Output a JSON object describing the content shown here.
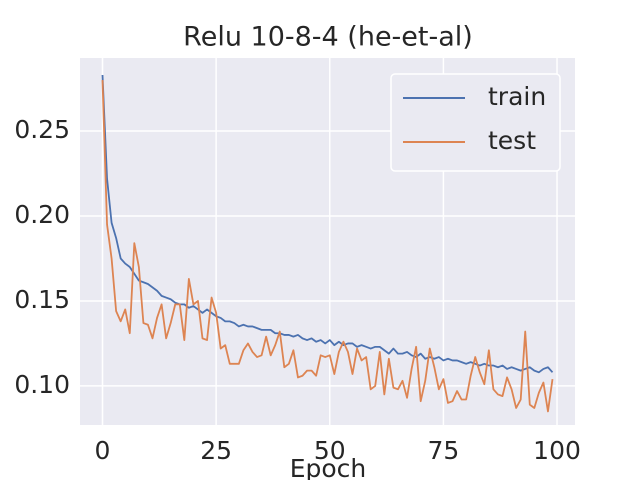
{
  "chart_data": {
    "type": "line",
    "title": "Relu 10-8-4 (he-et-al)",
    "x_label": "Epoch",
    "x": [
      0,
      1,
      2,
      3,
      4,
      5,
      6,
      7,
      8,
      9,
      10,
      11,
      12,
      13,
      14,
      15,
      16,
      17,
      18,
      19,
      20,
      21,
      22,
      23,
      24,
      25,
      26,
      27,
      28,
      29,
      30,
      31,
      32,
      33,
      34,
      35,
      36,
      37,
      38,
      39,
      40,
      41,
      42,
      43,
      44,
      45,
      46,
      47,
      48,
      49,
      50,
      51,
      52,
      53,
      54,
      55,
      56,
      57,
      58,
      59,
      60,
      61,
      62,
      63,
      64,
      65,
      66,
      67,
      68,
      69,
      70,
      71,
      72,
      73,
      74,
      75,
      76,
      77,
      78,
      79,
      80,
      81,
      82,
      83,
      84,
      85,
      86,
      87,
      88,
      89,
      90,
      91,
      92,
      93,
      94,
      95,
      96,
      97,
      98,
      99
    ],
    "series": [
      {
        "name": "train",
        "color": "#4c72b0",
        "values": [
          0.283,
          0.222,
          0.196,
          0.187,
          0.175,
          0.172,
          0.17,
          0.166,
          0.162,
          0.161,
          0.16,
          0.158,
          0.156,
          0.153,
          0.152,
          0.151,
          0.149,
          0.148,
          0.148,
          0.146,
          0.147,
          0.145,
          0.143,
          0.145,
          0.143,
          0.141,
          0.14,
          0.138,
          0.138,
          0.137,
          0.135,
          0.136,
          0.135,
          0.135,
          0.134,
          0.133,
          0.133,
          0.133,
          0.131,
          0.131,
          0.13,
          0.13,
          0.129,
          0.13,
          0.128,
          0.127,
          0.128,
          0.126,
          0.127,
          0.125,
          0.127,
          0.124,
          0.126,
          0.124,
          0.125,
          0.125,
          0.123,
          0.124,
          0.123,
          0.122,
          0.123,
          0.123,
          0.121,
          0.119,
          0.122,
          0.119,
          0.119,
          0.12,
          0.118,
          0.117,
          0.119,
          0.116,
          0.117,
          0.116,
          0.117,
          0.115,
          0.116,
          0.115,
          0.115,
          0.114,
          0.113,
          0.114,
          0.113,
          0.112,
          0.113,
          0.112,
          0.112,
          0.111,
          0.112,
          0.11,
          0.111,
          0.11,
          0.109,
          0.11,
          0.111,
          0.109,
          0.108,
          0.11,
          0.111,
          0.108
        ]
      },
      {
        "name": "test",
        "color": "#dd8452",
        "values": [
          0.28,
          0.195,
          0.175,
          0.144,
          0.138,
          0.145,
          0.131,
          0.184,
          0.17,
          0.137,
          0.136,
          0.128,
          0.14,
          0.148,
          0.128,
          0.137,
          0.148,
          0.148,
          0.127,
          0.163,
          0.148,
          0.15,
          0.128,
          0.127,
          0.152,
          0.143,
          0.122,
          0.124,
          0.113,
          0.113,
          0.113,
          0.121,
          0.125,
          0.12,
          0.117,
          0.118,
          0.129,
          0.118,
          0.124,
          0.132,
          0.111,
          0.113,
          0.121,
          0.105,
          0.106,
          0.109,
          0.109,
          0.106,
          0.118,
          0.117,
          0.118,
          0.107,
          0.12,
          0.126,
          0.12,
          0.107,
          0.122,
          0.115,
          0.117,
          0.098,
          0.1,
          0.12,
          0.095,
          0.116,
          0.099,
          0.098,
          0.103,
          0.093,
          0.11,
          0.123,
          0.091,
          0.103,
          0.122,
          0.111,
          0.098,
          0.104,
          0.09,
          0.091,
          0.097,
          0.092,
          0.092,
          0.106,
          0.117,
          0.108,
          0.101,
          0.121,
          0.098,
          0.095,
          0.094,
          0.105,
          0.098,
          0.087,
          0.092,
          0.132,
          0.089,
          0.087,
          0.096,
          0.102,
          0.085,
          0.104
        ]
      }
    ],
    "xlim": [
      -4.95,
      103.95
    ],
    "ylim": [
      0.077,
      0.293
    ],
    "xticks": [
      0,
      25,
      50,
      75,
      100
    ],
    "yticks": [
      {
        "value": 0.1,
        "label": "0.10"
      },
      0.15,
      {
        "value": 0.2,
        "label": "0.20"
      },
      0.25
    ],
    "grid": true,
    "legend": "upper right"
  }
}
